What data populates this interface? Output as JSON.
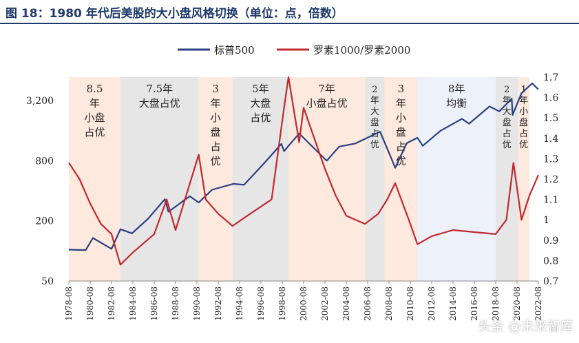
{
  "title": "图 18：1980 年代后美股的大小盘风格切换（单位：点，倍数）",
  "watermark": "头条 @未来智库",
  "chart_data": {
    "type": "line",
    "title": "图 18：1980 年代后美股的大小盘风格切换（单位：点，倍数）",
    "legend": [
      "标普500",
      "罗素1000/罗素2000"
    ],
    "legend_position": "top",
    "colors": {
      "sp500": "#2b3f84",
      "ratio": "#c0282d",
      "small_band": "#fde9de",
      "large_band": "#e6e6e6",
      "balanced_band": "#edf1fa"
    },
    "x_ticks": [
      "1978-08",
      "1980-08",
      "1982-08",
      "1984-08",
      "1986-08",
      "1988-08",
      "1990-08",
      "1992-08",
      "1994-08",
      "1996-08",
      "1998-08",
      "2000-08",
      "2002-08",
      "2004-08",
      "2006-08",
      "2008-08",
      "2010-08",
      "2012-08",
      "2014-08",
      "2016-08",
      "2018-08",
      "2020-08",
      "2022-08"
    ],
    "y_left": {
      "scale": "log",
      "ticks": [
        50,
        200,
        800,
        3200
      ],
      "tick_labels": [
        "50",
        "200",
        "800",
        "3,200"
      ],
      "range": [
        50,
        5500
      ]
    },
    "y_right": {
      "scale": "linear",
      "ticks": [
        0.7,
        0.8,
        0.9,
        1,
        1.1,
        1.2,
        1.3,
        1.4,
        1.5,
        1.6,
        1.7
      ],
      "range": [
        0.7,
        1.7
      ]
    },
    "regimes": [
      {
        "label": "8.5年小盘占优",
        "lines": [
          "8.5",
          "年",
          "小盘",
          "占优"
        ],
        "type": "small",
        "start": "1978-08",
        "end": "1983-06"
      },
      {
        "label": "7.5年大盘占优",
        "lines": [
          "7.5年",
          "大盘占优"
        ],
        "type": "large",
        "start": "1983-06",
        "end": "1990-10"
      },
      {
        "label": "3年小盘占优",
        "lines": [
          "3",
          "年",
          "小",
          "盘",
          "占",
          "优"
        ],
        "type": "small",
        "start": "1990-10",
        "end": "1993-12"
      },
      {
        "label": "5年大盘占优",
        "lines": [
          "5年",
          "大盘",
          "占优"
        ],
        "type": "large",
        "start": "1993-12",
        "end": "1999-03"
      },
      {
        "label": "7年小盘占优",
        "lines": [
          "7年",
          "小盘占优"
        ],
        "type": "small",
        "start": "1999-03",
        "end": "2006-05"
      },
      {
        "label": "2年大盘占优",
        "lines": [
          "2",
          "年",
          "大",
          "盘",
          "占",
          "优"
        ],
        "type": "large",
        "start": "2006-05",
        "end": "2008-03"
      },
      {
        "label": "3年小盘占优",
        "lines": [
          "3",
          "年",
          "小",
          "盘",
          "占",
          "优"
        ],
        "type": "small",
        "start": "2008-03",
        "end": "2011-04"
      },
      {
        "label": "8年均衡",
        "lines": [
          "8年",
          "均衡"
        ],
        "type": "balanced",
        "start": "2011-04",
        "end": "2018-08"
      },
      {
        "label": "2年大盘占优",
        "lines": [
          "2",
          "年",
          "大",
          "盘",
          "占",
          "优"
        ],
        "type": "large",
        "start": "2018-08",
        "end": "2020-09"
      },
      {
        "label": "1年小盘占优",
        "lines": [
          "1",
          "年",
          "小",
          "盘",
          "占",
          "优"
        ],
        "type": "small",
        "start": "2020-09",
        "end": "2021-10"
      }
    ],
    "series": [
      {
        "name": "标普500",
        "axis": "left",
        "points": [
          [
            "1978-08",
            103
          ],
          [
            "1980-03",
            102
          ],
          [
            "1980-11",
            135
          ],
          [
            "1982-08",
            105
          ],
          [
            "1983-06",
            165
          ],
          [
            "1984-07",
            150
          ],
          [
            "1986-01",
            210
          ],
          [
            "1987-08",
            330
          ],
          [
            "1987-12",
            247
          ],
          [
            "1989-12",
            353
          ],
          [
            "1990-10",
            305
          ],
          [
            "1992-01",
            410
          ],
          [
            "1994-01",
            470
          ],
          [
            "1995-01",
            460
          ],
          [
            "1997-01",
            780
          ],
          [
            "1998-07",
            1180
          ],
          [
            "1998-10",
            1000
          ],
          [
            "2000-03",
            1500
          ],
          [
            "2001-09",
            1040
          ],
          [
            "2002-10",
            800
          ],
          [
            "2003-12",
            1110
          ],
          [
            "2005-06",
            1190
          ],
          [
            "2007-10",
            1560
          ],
          [
            "2008-11",
            830
          ],
          [
            "2009-03",
            680
          ],
          [
            "2010-04",
            1200
          ],
          [
            "2011-04",
            1360
          ],
          [
            "2011-10",
            1130
          ],
          [
            "2013-06",
            1600
          ],
          [
            "2015-06",
            2100
          ],
          [
            "2016-02",
            1880
          ],
          [
            "2018-01",
            2800
          ],
          [
            "2018-12",
            2500
          ],
          [
            "2020-02",
            3350
          ],
          [
            "2020-03",
            2300
          ],
          [
            "2021-01",
            3800
          ],
          [
            "2022-01",
            4770
          ],
          [
            "2022-08",
            4150
          ]
        ]
      },
      {
        "name": "罗素1000/罗素2000",
        "axis": "right",
        "points": [
          [
            "1978-08",
            1.28
          ],
          [
            "1979-08",
            1.2
          ],
          [
            "1980-08",
            1.08
          ],
          [
            "1981-08",
            0.98
          ],
          [
            "1982-08",
            0.93
          ],
          [
            "1983-06",
            0.78
          ],
          [
            "1984-08",
            0.84
          ],
          [
            "1986-08",
            0.93
          ],
          [
            "1987-10",
            1.1
          ],
          [
            "1988-08",
            0.95
          ],
          [
            "1990-10",
            1.32
          ],
          [
            "1991-06",
            1.1
          ],
          [
            "1992-08",
            1.03
          ],
          [
            "1993-12",
            0.97
          ],
          [
            "1995-08",
            1.03
          ],
          [
            "1997-08",
            1.1
          ],
          [
            "1998-10",
            1.55
          ],
          [
            "1999-03",
            1.7
          ],
          [
            "2000-03",
            1.38
          ],
          [
            "2000-08",
            1.55
          ],
          [
            "2001-08",
            1.4
          ],
          [
            "2002-08",
            1.25
          ],
          [
            "2003-08",
            1.12
          ],
          [
            "2004-08",
            1.02
          ],
          [
            "2006-05",
            0.98
          ],
          [
            "2007-08",
            1.03
          ],
          [
            "2008-06",
            1.1
          ],
          [
            "2009-03",
            1.18
          ],
          [
            "2010-08",
            0.98
          ],
          [
            "2011-04",
            0.88
          ],
          [
            "2012-08",
            0.92
          ],
          [
            "2014-08",
            0.95
          ],
          [
            "2016-08",
            0.94
          ],
          [
            "2018-08",
            0.93
          ],
          [
            "2019-08",
            1.0
          ],
          [
            "2020-04",
            1.28
          ],
          [
            "2021-01",
            1.0
          ],
          [
            "2021-10",
            1.12
          ],
          [
            "2022-08",
            1.22
          ]
        ]
      }
    ]
  }
}
